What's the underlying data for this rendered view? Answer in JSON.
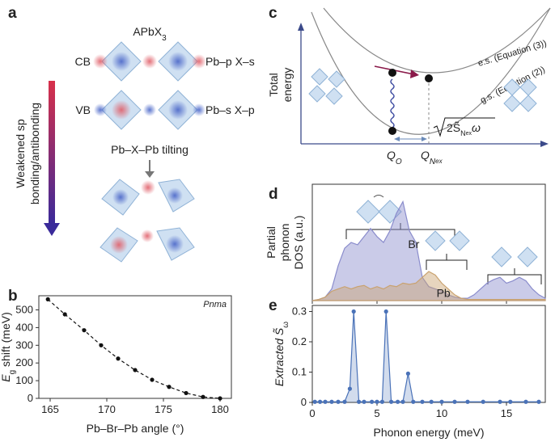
{
  "panel_labels": [
    "a",
    "b",
    "c",
    "d",
    "e"
  ],
  "diagram_a": {
    "formula": {
      "main": "APbX",
      "sub": "3"
    },
    "cb": "CB",
    "cb_orbitals": "Pb–p X–s",
    "vb": "VB",
    "vb_orbitals": "Pb–s X–p",
    "tilting": "Pb–X–Pb tilting",
    "arrow_label": [
      "Weakened sp",
      "bonding/antibonding"
    ]
  },
  "diagram_c": {
    "ylabel": [
      "Total",
      "energy"
    ],
    "es": "e.s. (Equation (3))",
    "gs": "g.s. (Equation (2))",
    "q0": {
      "main": "Q",
      "sub": "O"
    },
    "qnex": {
      "main": "Q",
      "sub": "N",
      "subsub": "ex"
    },
    "sqrt": {
      "main": "2S̃",
      "sub": "N",
      "subsub": "ex",
      "tail": "ω"
    }
  },
  "chart_data": [
    {
      "type": "line",
      "x": [
        164.8,
        166.3,
        168,
        169.5,
        171,
        172.5,
        174,
        175.5,
        177,
        178.5,
        180
      ],
      "values": [
        560,
        475,
        385,
        300,
        225,
        160,
        105,
        65,
        30,
        8,
        0
      ],
      "color": "#111111",
      "dashed": true,
      "markers": true,
      "xlim": [
        164,
        181
      ],
      "ylim": [
        0,
        580
      ],
      "xticks": [
        165,
        170,
        175,
        180
      ],
      "yticks": [
        0,
        100,
        200,
        300,
        400,
        500
      ],
      "xlabel": "Pb–Br–Pb angle (°)",
      "ylabel": {
        "main": "E",
        "sub": "g",
        "tail": " shift (meV)"
      },
      "annotation": "Pnma"
    },
    {
      "type": "area",
      "x": [
        0,
        0.5,
        1,
        1.5,
        2,
        2.5,
        3,
        3.5,
        4,
        4.5,
        5,
        5.5,
        6,
        6.5,
        7,
        7.5,
        8,
        8.5,
        9,
        9.5,
        10,
        10.5,
        11,
        11.5,
        12,
        12.5,
        13,
        13.5,
        14,
        14.5,
        15,
        15.5,
        16,
        16.5,
        17,
        17.5,
        18
      ],
      "series": [
        {
          "name": "Br",
          "color": "#8a8ccc",
          "values": [
            0,
            0.01,
            0.03,
            0.1,
            0.3,
            0.45,
            0.5,
            0.48,
            0.55,
            0.62,
            0.55,
            0.5,
            0.6,
            0.75,
            0.85,
            0.6,
            0.5,
            0.2,
            0.12,
            0.1,
            0.08,
            0.05,
            0.03,
            0.02,
            0.02,
            0.05,
            0.1,
            0.15,
            0.18,
            0.2,
            0.15,
            0.17,
            0.2,
            0.17,
            0.1,
            0.05,
            0.02
          ]
        },
        {
          "name": "Pb",
          "color": "#c9a26f",
          "values": [
            0,
            0.01,
            0.03,
            0.08,
            0.1,
            0.12,
            0.1,
            0.12,
            0.13,
            0.1,
            0.12,
            0.1,
            0.13,
            0.12,
            0.15,
            0.14,
            0.15,
            0.2,
            0.25,
            0.22,
            0.15,
            0.1,
            0.05,
            0.02,
            0.01,
            0.01,
            0.01,
            0.01,
            0.01,
            0.01,
            0.01,
            0.01,
            0.01,
            0.01,
            0.01,
            0.01,
            0.01
          ]
        }
      ],
      "xlim": [
        0,
        18
      ],
      "ylim": [
        0,
        1
      ],
      "xticks": [
        0,
        5,
        10,
        15
      ],
      "xtick_labels": false,
      "ylabel": [
        "Partial",
        "phonon",
        "DOS (a.u.)"
      ]
    },
    {
      "type": "line",
      "x": [
        0.2,
        0.6,
        1,
        1.5,
        2,
        2.5,
        2.9,
        3.2,
        3.6,
        4,
        4.6,
        5,
        5.4,
        5.7,
        6.1,
        6.6,
        7,
        7.4,
        7.8,
        8.5,
        9.2,
        10,
        11,
        12,
        13.2,
        14.5,
        15.3,
        16.5,
        17.5
      ],
      "values": [
        0.002,
        0.002,
        0.002,
        0.002,
        0.002,
        0.002,
        0.045,
        0.3,
        0.002,
        0.002,
        0.002,
        0.002,
        0.002,
        0.3,
        0.002,
        0.002,
        0.002,
        0.095,
        0.002,
        0.002,
        0.002,
        0.002,
        0.002,
        0.002,
        0.002,
        0.002,
        0.002,
        0.002,
        0.002
      ],
      "color": "#4a72b8",
      "fill": true,
      "markers": true,
      "xlim": [
        0,
        18
      ],
      "ylim": [
        0,
        0.32
      ],
      "xticks": [
        0,
        5,
        10,
        15
      ],
      "yticks": [
        0,
        0.1,
        0.2,
        0.3
      ],
      "xlabel": "Phonon energy (meV)",
      "ylabel": {
        "main": "Extracted S̃",
        "sub": "ω"
      }
    }
  ]
}
